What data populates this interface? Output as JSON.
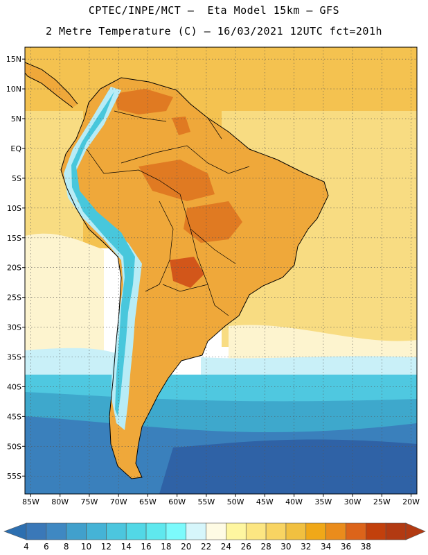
{
  "header": {
    "line1": "CPTEC/INPE/MCT –  Eta Model 15km – GFS",
    "line2": "2 Metre Temperature (C) – 16/03/2021 12UTC fct=201h"
  },
  "map": {
    "lon_range": [
      -86,
      -19
    ],
    "lat_range": [
      -58,
      17
    ],
    "lat_labels": [
      {
        "lat": 15,
        "label": "15N"
      },
      {
        "lat": 10,
        "label": "10N"
      },
      {
        "lat": 5,
        "label": "5N"
      },
      {
        "lat": 0,
        "label": "EQ"
      },
      {
        "lat": -5,
        "label": "5S"
      },
      {
        "lat": -10,
        "label": "10S"
      },
      {
        "lat": -15,
        "label": "15S"
      },
      {
        "lat": -20,
        "label": "20S"
      },
      {
        "lat": -25,
        "label": "25S"
      },
      {
        "lat": -30,
        "label": "30S"
      },
      {
        "lat": -35,
        "label": "35S"
      },
      {
        "lat": -40,
        "label": "40S"
      },
      {
        "lat": -45,
        "label": "45S"
      },
      {
        "lat": -50,
        "label": "50S"
      },
      {
        "lat": -55,
        "label": "55S"
      }
    ],
    "lon_labels": [
      {
        "lon": -85,
        "label": "85W"
      },
      {
        "lon": -80,
        "label": "80W"
      },
      {
        "lon": -75,
        "label": "75W"
      },
      {
        "lon": -70,
        "label": "70W"
      },
      {
        "lon": -65,
        "label": "65W"
      },
      {
        "lon": -60,
        "label": "60W"
      },
      {
        "lon": -55,
        "label": "55W"
      },
      {
        "lon": -50,
        "label": "50W"
      },
      {
        "lon": -45,
        "label": "45W"
      },
      {
        "lon": -40,
        "label": "40W"
      },
      {
        "lon": -35,
        "label": "35W"
      },
      {
        "lon": -30,
        "label": "30W"
      },
      {
        "lon": -25,
        "label": "25W"
      },
      {
        "lon": -20,
        "label": "20W"
      }
    ]
  },
  "colorbar": {
    "labels": [
      "4",
      "6",
      "8",
      "10",
      "12",
      "14",
      "16",
      "18",
      "20",
      "22",
      "24",
      "26",
      "28",
      "30",
      "32",
      "34",
      "36",
      "38"
    ],
    "low_color": "#2d6fb0",
    "high_color": "#b23a12",
    "colors": [
      "#3a78b8",
      "#3f88c2",
      "#41a0cc",
      "#45b3d6",
      "#4cc6de",
      "#52d8e6",
      "#5fe8ee",
      "#7cfafc",
      "#d6f6fb",
      "#fefbe4",
      "#fef6a0",
      "#fce682",
      "#f8d462",
      "#f1c040",
      "#f0a818",
      "#ea8c1c",
      "#dc641a",
      "#c2400c",
      "#b23a12"
    ]
  },
  "palette": {
    "land": "#efa83a",
    "land_hot": "#e07a22",
    "land_hottest": "#d2561a",
    "andes_cold": "#48c7dc",
    "andes_cool": "#b8ecf6",
    "ocean_warm": "#f4c250",
    "ocean_mild": "#f8dc82",
    "ocean_pale": "#fdf4cf",
    "ocean_cool": "#c9f0f8",
    "ocean_cold": "#4fc8e0",
    "ocean_colder": "#3ea8cc",
    "ocean_coldest": "#3a80bc",
    "deep_cold": "#2f62a6",
    "coast": "#000000",
    "grid": "#555555"
  }
}
